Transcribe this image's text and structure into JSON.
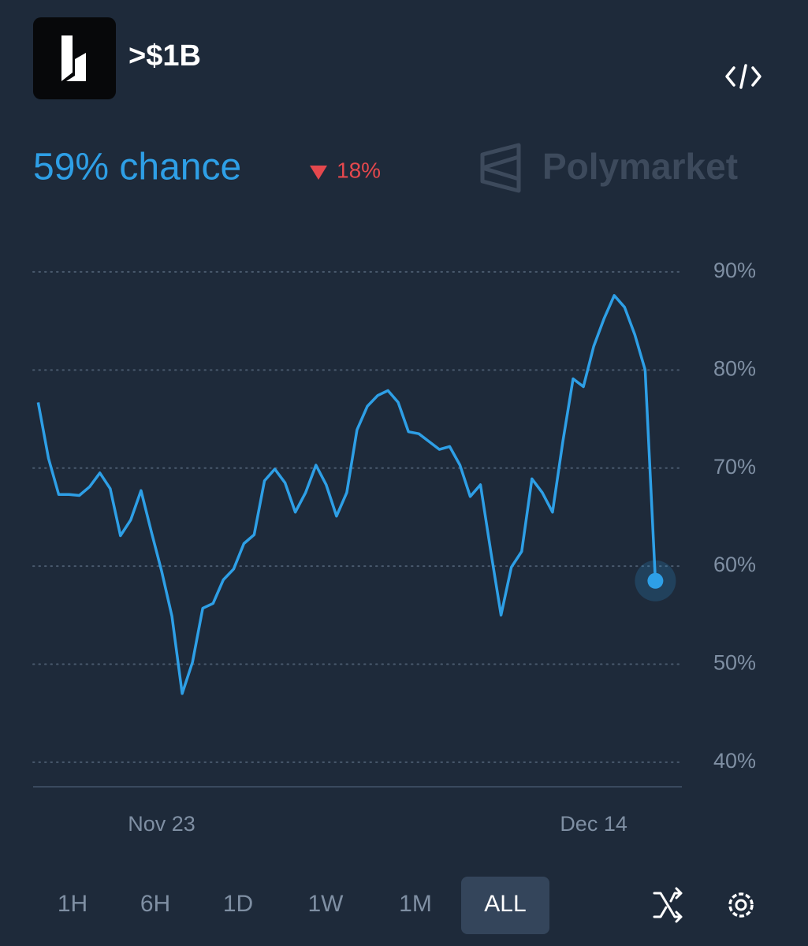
{
  "header": {
    "title": ">$1B",
    "chance": "59% chance",
    "change": "18%",
    "brand": "Polymarket"
  },
  "tabs": [
    "1H",
    "6H",
    "1D",
    "1W",
    "1M",
    "ALL"
  ],
  "active_tab": 5,
  "chart_data": {
    "type": "line",
    "categories": [
      null,
      null,
      null,
      null,
      null,
      null,
      null,
      null,
      null,
      null,
      null,
      null,
      "Nov 23",
      null,
      null,
      null,
      null,
      null,
      null,
      null,
      null,
      null,
      null,
      null,
      null,
      null,
      null,
      null,
      null,
      null,
      null,
      null,
      null,
      null,
      null,
      null,
      null,
      null,
      null,
      null,
      null,
      null,
      null,
      null,
      null,
      null,
      null,
      null,
      null,
      null,
      null,
      null,
      null,
      null,
      "Dec 14",
      null,
      null,
      null,
      null,
      null,
      null
    ],
    "series": [
      {
        "name": ">$1B",
        "color": "#2e9fe6",
        "values": [
          76.7,
          71,
          67.3,
          67.3,
          67.2,
          68.1,
          69.5,
          67.9,
          63.1,
          64.7,
          67.7,
          63.5,
          59.5,
          54.9,
          47,
          50.2,
          55.7,
          56.2,
          58.6,
          59.7,
          62.3,
          63.2,
          68.7,
          69.9,
          68.5,
          65.5,
          67.5,
          70.3,
          68.3,
          65.1,
          67.5,
          73.9,
          76.3,
          77.4,
          77.9,
          76.7,
          73.7,
          73.5,
          72.7,
          71.9,
          72.2,
          70.3,
          67.1,
          68.3,
          61.5,
          55,
          59.9,
          61.5,
          68.9,
          67.5,
          65.5,
          72.7,
          79.1,
          78.3,
          82.4,
          85.2,
          87.6,
          86.4,
          83.6,
          80,
          58.5
        ]
      }
    ],
    "ylim": [
      37.5,
      91.2
    ],
    "yticks": [
      {
        "value": 40,
        "label": "40%"
      },
      {
        "value": 50,
        "label": "50%"
      },
      {
        "value": 60,
        "label": "60%"
      },
      {
        "value": 70,
        "label": "70%"
      },
      {
        "value": 80,
        "label": "80%"
      },
      {
        "value": 90,
        "label": "90%"
      }
    ],
    "grid": true
  }
}
